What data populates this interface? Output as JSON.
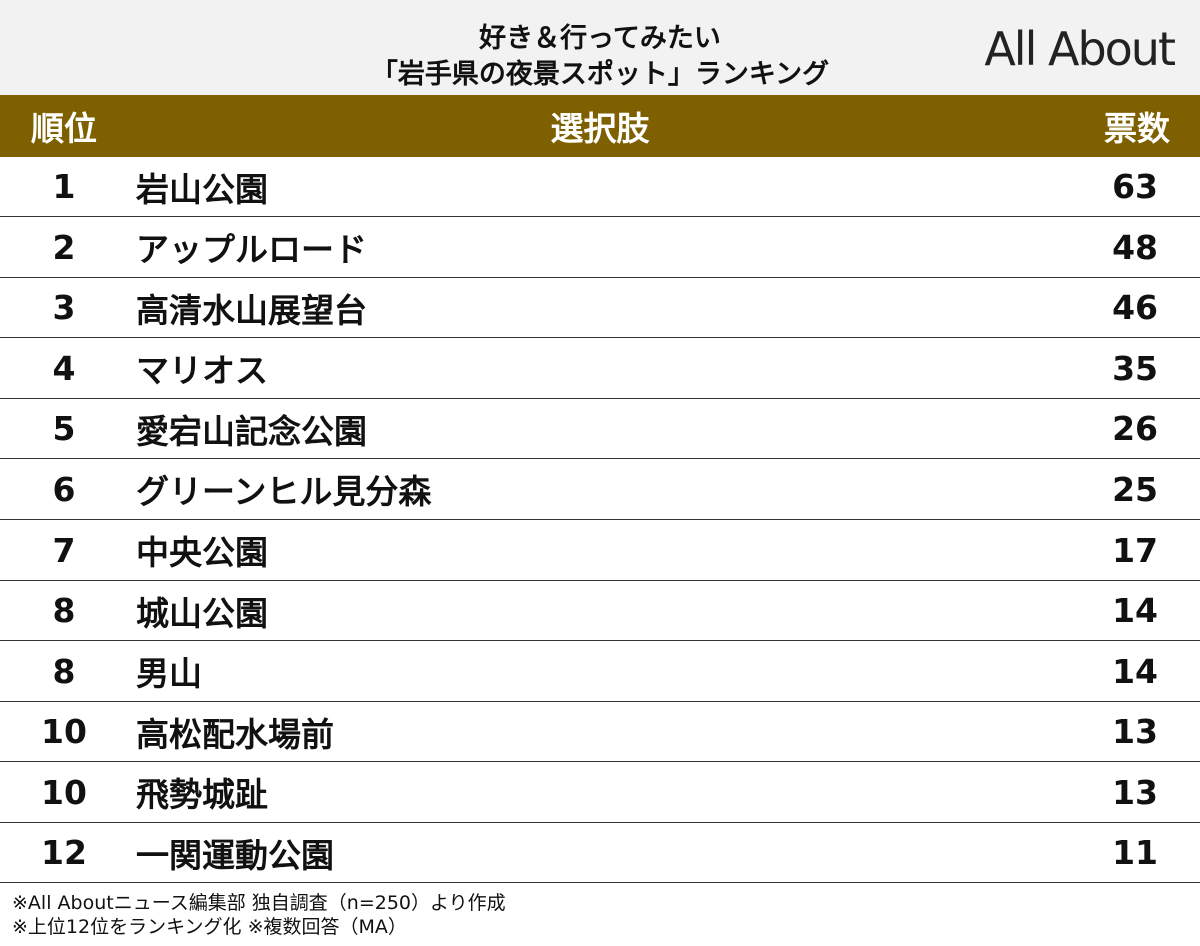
{
  "header": {
    "title_lines": [
      "好き＆行ってみたい",
      "「岩手県の夜景スポット」ランキング"
    ],
    "logo": "All About"
  },
  "table": {
    "columns": [
      "順位",
      "選択肢",
      "票数"
    ],
    "rows": [
      [
        1,
        "岩山公園",
        63
      ],
      [
        2,
        "アップルロード",
        48
      ],
      [
        3,
        "高清水山展望台",
        46
      ],
      [
        4,
        "マリオス",
        35
      ],
      [
        5,
        "愛宕山記念公園",
        26
      ],
      [
        6,
        "グリーンヒル見分森",
        25
      ],
      [
        7,
        "中央公園",
        17
      ],
      [
        8,
        "城山公園",
        14
      ],
      [
        8,
        "男山",
        14
      ],
      [
        10,
        "高松配水場前",
        13
      ],
      [
        10,
        "飛勢城趾",
        13
      ],
      [
        12,
        "一関運動公園",
        11
      ]
    ]
  },
  "footnotes": [
    "※All Aboutニュース編集部 独自調査（n=250）より作成",
    "※上位12位をランキング化 ※複数回答（MA）"
  ]
}
